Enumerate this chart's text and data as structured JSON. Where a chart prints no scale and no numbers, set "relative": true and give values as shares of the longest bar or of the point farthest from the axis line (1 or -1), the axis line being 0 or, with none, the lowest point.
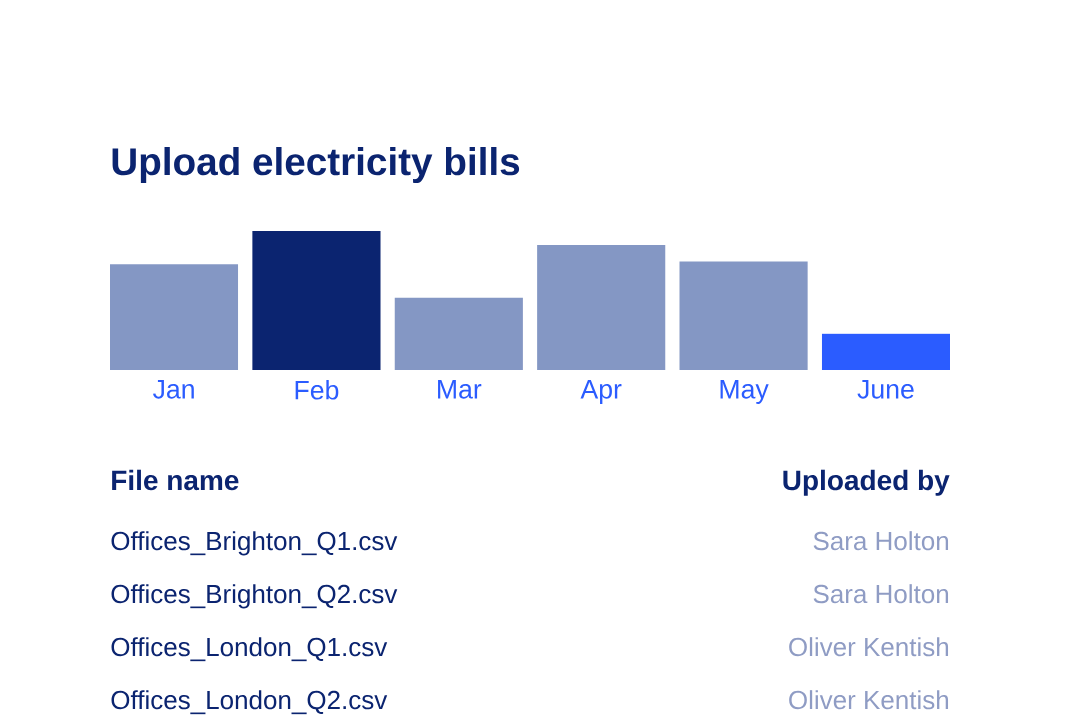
{
  "chart_data": {
    "type": "bar",
    "title": "Upload electricity bills",
    "relative": true,
    "categories": [
      "Jan",
      "Feb",
      "Mar",
      "Apr",
      "May",
      "June"
    ],
    "values": [
      0.76,
      1,
      0.52,
      0.9,
      0.78,
      0.26
    ],
    "colors": [
      "#8497c4",
      "#0b2470",
      "#8497c4",
      "#8497c4",
      "#8497c4",
      "#2b5cff"
    ],
    "annotations": [
      "File name",
      "Uploaded by",
      "Offices_Brighton_Q1.csv",
      "Sara Holton",
      "Offices_Brighton_Q2.csv",
      "Sara Holton",
      "Offices_London_Q1.csv",
      "Oliver Kentish",
      "Offices_London_Q2.csv",
      "Oliver Kentish"
    ]
  }
}
